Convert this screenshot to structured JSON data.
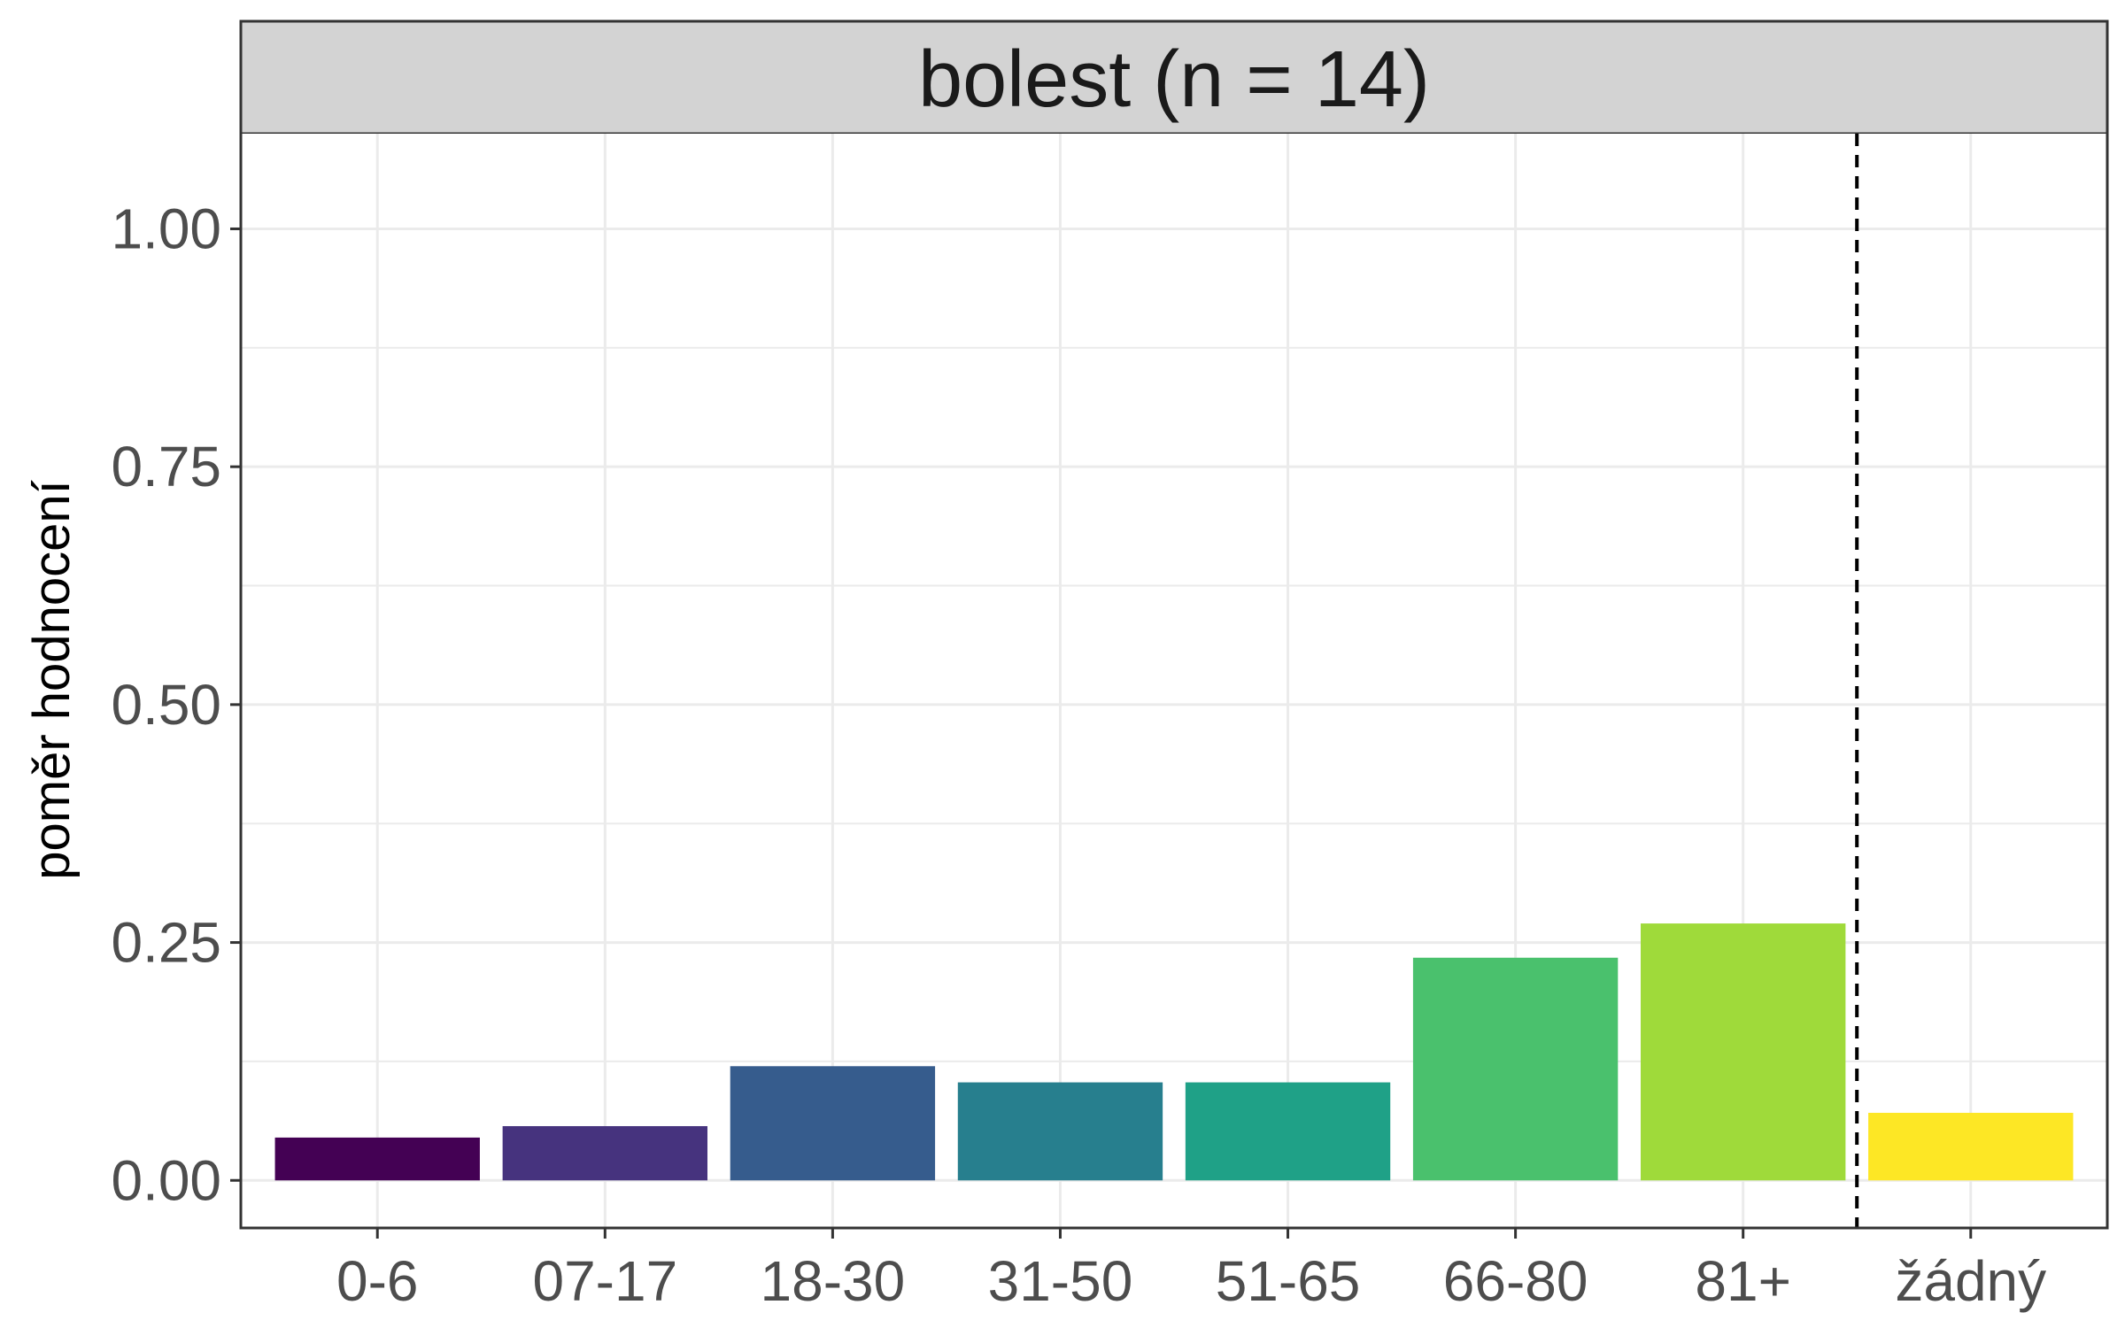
{
  "chart_data": {
    "type": "bar",
    "title": "bolest (n = 14)",
    "xlabel": "",
    "ylabel": "poměr hodnocení",
    "ylim": [
      -0.05,
      1.1
    ],
    "yticks": [
      "0.00",
      "0.25",
      "0.50",
      "0.75",
      "1.00"
    ],
    "ytick_values": [
      0,
      0.25,
      0.5,
      0.75,
      1.0
    ],
    "grid": true,
    "categories": [
      "0-6",
      "07-17",
      "18-30",
      "31-50",
      "51-65",
      "66-80",
      "81+",
      "žádný"
    ],
    "values": [
      0.045,
      0.057,
      0.12,
      0.103,
      0.103,
      0.234,
      0.27,
      0.071
    ],
    "colors": [
      "#440154",
      "#46337E",
      "#365C8D",
      "#277F8E",
      "#1FA187",
      "#4AC16D",
      "#9FDA3A",
      "#FDE725"
    ],
    "reference_line": {
      "style": "dashed",
      "between": [
        "81+",
        "žádný"
      ]
    }
  }
}
